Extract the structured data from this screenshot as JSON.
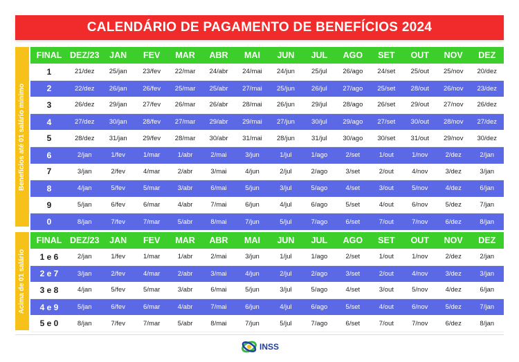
{
  "title": "CALENDÁRIO DE PAGAMENTO DE BENEFÍCIOS 2024",
  "headers": [
    "FINAL",
    "DEZ/23",
    "JAN",
    "FEV",
    "MAR",
    "ABR",
    "MAI",
    "JUN",
    "JUL",
    "AGO",
    "SET",
    "OUT",
    "NOV",
    "DEZ"
  ],
  "section1": {
    "label": "Benefícios até 01 salário mínimo",
    "rows": [
      [
        "1",
        "21/dez",
        "25/jan",
        "23/fev",
        "22/mar",
        "24/abr",
        "24/mai",
        "24/jun",
        "25/jul",
        "26/ago",
        "24/set",
        "25/out",
        "25/nov",
        "20/dez"
      ],
      [
        "2",
        "22/dez",
        "26/jan",
        "26/fev",
        "25/mar",
        "25/abr",
        "27/mai",
        "25/jun",
        "26/jul",
        "27/ago",
        "25/set",
        "28/out",
        "26/nov",
        "23/dez"
      ],
      [
        "3",
        "26/dez",
        "29/jan",
        "27/fev",
        "26/mar",
        "26/abr",
        "28/mai",
        "26/jun",
        "29/jul",
        "28/ago",
        "26/set",
        "29/out",
        "27/nov",
        "26/dez"
      ],
      [
        "4",
        "27/dez",
        "30/jan",
        "28/fev",
        "27/mar",
        "29/abr",
        "29/mai",
        "27/jun",
        "30/jul",
        "29/ago",
        "27/set",
        "30/out",
        "28/nov",
        "27/dez"
      ],
      [
        "5",
        "28/dez",
        "31/jan",
        "29/fev",
        "28/mar",
        "30/abr",
        "31/mai",
        "28/jun",
        "31/jul",
        "30/ago",
        "30/set",
        "31/out",
        "29/nov",
        "30/dez"
      ],
      [
        "6",
        "2/jan",
        "1/fev",
        "1/mar",
        "1/abr",
        "2/mai",
        "3/jun",
        "1/jul",
        "1/ago",
        "2/set",
        "1/out",
        "1/nov",
        "2/dez",
        "2/jan"
      ],
      [
        "7",
        "3/jan",
        "2/fev",
        "4/mar",
        "2/abr",
        "3/mai",
        "4/jun",
        "2/jul",
        "2/ago",
        "3/set",
        "2/out",
        "4/nov",
        "3/dez",
        "3/jan"
      ],
      [
        "8",
        "4/jan",
        "5/fev",
        "5/mar",
        "3/abr",
        "6/mai",
        "5/jun",
        "3/jul",
        "5/ago",
        "4/set",
        "3/out",
        "5/nov",
        "4/dez",
        "6/jan"
      ],
      [
        "9",
        "5/jan",
        "6/fev",
        "6/mar",
        "4/abr",
        "7/mai",
        "6/jun",
        "4/jul",
        "6/ago",
        "5/set",
        "4/out",
        "6/nov",
        "5/dez",
        "7/jan"
      ],
      [
        "0",
        "8/jan",
        "7/fev",
        "7/mar",
        "5/abr",
        "8/mai",
        "7/jun",
        "5/jul",
        "7/ago",
        "6/set",
        "7/out",
        "7/nov",
        "6/dez",
        "8/jan"
      ]
    ]
  },
  "section2": {
    "label": "Acima de 01 salário",
    "rows": [
      [
        "1 e 6",
        "2/jan",
        "1/fev",
        "1/mar",
        "1/abr",
        "2/mai",
        "3/jun",
        "1/jul",
        "1/ago",
        "2/set",
        "1/out",
        "1/nov",
        "2/dez",
        "2/jan"
      ],
      [
        "2 e 7",
        "3/jan",
        "2/fev",
        "4/mar",
        "2/abr",
        "3/mai",
        "4/jun",
        "2/jul",
        "2/ago",
        "3/set",
        "2/out",
        "4/nov",
        "3/dez",
        "3/jan"
      ],
      [
        "3 e 8",
        "4/jan",
        "5/fev",
        "5/mar",
        "3/abr",
        "6/mai",
        "5/jun",
        "3/jul",
        "5/ago",
        "4/set",
        "3/out",
        "5/nov",
        "4/dez",
        "6/jan"
      ],
      [
        "4 e 9",
        "5/jan",
        "6/fev",
        "6/mar",
        "4/abr",
        "7/mai",
        "6/jun",
        "4/jul",
        "6/ago",
        "5/set",
        "4/out",
        "6/nov",
        "5/dez",
        "7/jan"
      ],
      [
        "5 e 0",
        "8/jan",
        "7/fev",
        "7/mar",
        "5/abr",
        "8/mai",
        "7/jun",
        "5/jul",
        "7/ago",
        "6/set",
        "7/out",
        "7/nov",
        "6/dez",
        "8/jan"
      ]
    ]
  },
  "logo": {
    "text": "INSS",
    "icon": "inss-logo-icon"
  },
  "colors": {
    "title_bg": "#f12b2b",
    "header_bg": "#3ccf2c",
    "alt_row_bg": "#5b69e6",
    "side_label_bg": "#f6c219"
  }
}
